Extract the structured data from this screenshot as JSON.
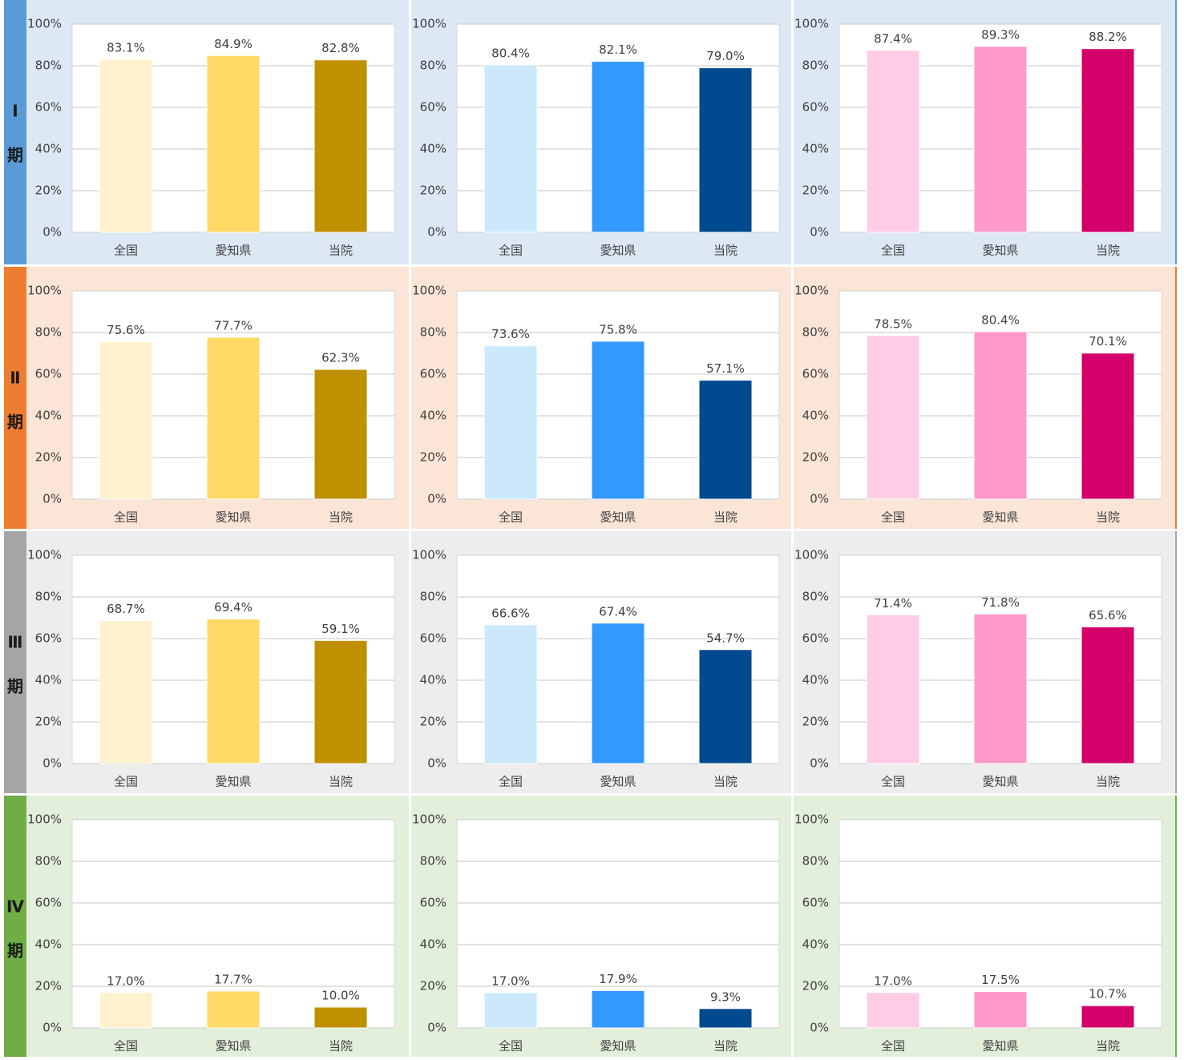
{
  "row_labels": [
    {
      "numeral": "Ⅰ",
      "kanji": "期"
    },
    {
      "numeral": "Ⅱ",
      "kanji": "期"
    },
    {
      "numeral": "Ⅲ",
      "kanji": "期"
    },
    {
      "numeral": "Ⅳ",
      "kanji": "期"
    }
  ],
  "chart_data": [
    {
      "type": "bar",
      "categories": [
        "全国",
        "愛知県",
        "当院"
      ],
      "values": [
        83.1,
        84.9,
        82.8
      ],
      "value_labels": [
        "83.1%",
        "84.9%",
        "82.8%"
      ],
      "colors": [
        "#fff2cc",
        "#ffd966",
        "#bf9000"
      ],
      "ylim": [
        0,
        100
      ],
      "yticks": [
        {
          "value": 0,
          "label": "0%"
        },
        {
          "value": 20,
          "label": "20%"
        },
        {
          "value": 40,
          "label": "40%"
        },
        {
          "value": 60,
          "label": "60%"
        },
        {
          "value": 80,
          "label": "80%"
        },
        {
          "value": 100,
          "label": "100%"
        }
      ],
      "grid": true
    },
    {
      "type": "bar",
      "categories": [
        "全国",
        "愛知県",
        "当院"
      ],
      "values": [
        80.4,
        82.1,
        79.0
      ],
      "value_labels": [
        "80.4%",
        "82.1%",
        "79.0%"
      ],
      "colors": [
        "#cce9fb",
        "#3399ff",
        "#004a8f"
      ],
      "ylim": [
        0,
        100
      ],
      "yticks": [
        {
          "value": 0,
          "label": "0%"
        },
        {
          "value": 20,
          "label": "20%"
        },
        {
          "value": 40,
          "label": "40%"
        },
        {
          "value": 60,
          "label": "60%"
        },
        {
          "value": 80,
          "label": "80%"
        },
        {
          "value": 100,
          "label": "100%"
        }
      ],
      "grid": true
    },
    {
      "type": "bar",
      "categories": [
        "全国",
        "愛知県",
        "当院"
      ],
      "values": [
        87.4,
        89.3,
        88.2
      ],
      "value_labels": [
        "87.4%",
        "89.3%",
        "88.2%"
      ],
      "colors": [
        "#ffcce6",
        "#ff99cc",
        "#d20068"
      ],
      "ylim": [
        0,
        100
      ],
      "yticks": [
        {
          "value": 0,
          "label": "0%"
        },
        {
          "value": 20,
          "label": "20%"
        },
        {
          "value": 40,
          "label": "40%"
        },
        {
          "value": 60,
          "label": "60%"
        },
        {
          "value": 80,
          "label": "80%"
        },
        {
          "value": 100,
          "label": "100%"
        }
      ],
      "grid": true
    },
    {
      "type": "bar",
      "categories": [
        "全国",
        "愛知県",
        "当院"
      ],
      "values": [
        75.6,
        77.7,
        62.3
      ],
      "value_labels": [
        "75.6%",
        "77.7%",
        "62.3%"
      ],
      "colors": [
        "#fff2cc",
        "#ffd966",
        "#bf9000"
      ],
      "ylim": [
        0,
        100
      ],
      "yticks": [
        {
          "value": 0,
          "label": "0%"
        },
        {
          "value": 20,
          "label": "20%"
        },
        {
          "value": 40,
          "label": "40%"
        },
        {
          "value": 60,
          "label": "60%"
        },
        {
          "value": 80,
          "label": "80%"
        },
        {
          "value": 100,
          "label": "100%"
        }
      ],
      "grid": true
    },
    {
      "type": "bar",
      "categories": [
        "全国",
        "愛知県",
        "当院"
      ],
      "values": [
        73.6,
        75.8,
        57.1
      ],
      "value_labels": [
        "73.6%",
        "75.8%",
        "57.1%"
      ],
      "colors": [
        "#cce9fb",
        "#3399ff",
        "#004a8f"
      ],
      "ylim": [
        0,
        100
      ],
      "yticks": [
        {
          "value": 0,
          "label": "0%"
        },
        {
          "value": 20,
          "label": "20%"
        },
        {
          "value": 40,
          "label": "40%"
        },
        {
          "value": 60,
          "label": "60%"
        },
        {
          "value": 80,
          "label": "80%"
        },
        {
          "value": 100,
          "label": "100%"
        }
      ],
      "grid": true
    },
    {
      "type": "bar",
      "categories": [
        "全国",
        "愛知県",
        "当院"
      ],
      "values": [
        78.5,
        80.4,
        70.1
      ],
      "value_labels": [
        "78.5%",
        "80.4%",
        "70.1%"
      ],
      "colors": [
        "#ffcce6",
        "#ff99cc",
        "#d20068"
      ],
      "ylim": [
        0,
        100
      ],
      "yticks": [
        {
          "value": 0,
          "label": "0%"
        },
        {
          "value": 20,
          "label": "20%"
        },
        {
          "value": 40,
          "label": "40%"
        },
        {
          "value": 60,
          "label": "60%"
        },
        {
          "value": 80,
          "label": "80%"
        },
        {
          "value": 100,
          "label": "100%"
        }
      ],
      "grid": true
    },
    {
      "type": "bar",
      "categories": [
        "全国",
        "愛知県",
        "当院"
      ],
      "values": [
        68.7,
        69.4,
        59.1
      ],
      "value_labels": [
        "68.7%",
        "69.4%",
        "59.1%"
      ],
      "colors": [
        "#fff2cc",
        "#ffd966",
        "#bf9000"
      ],
      "ylim": [
        0,
        100
      ],
      "yticks": [
        {
          "value": 0,
          "label": "0%"
        },
        {
          "value": 20,
          "label": "20%"
        },
        {
          "value": 40,
          "label": "40%"
        },
        {
          "value": 60,
          "label": "60%"
        },
        {
          "value": 80,
          "label": "80%"
        },
        {
          "value": 100,
          "label": "100%"
        }
      ],
      "grid": true
    },
    {
      "type": "bar",
      "categories": [
        "全国",
        "愛知県",
        "当院"
      ],
      "values": [
        66.6,
        67.4,
        54.7
      ],
      "value_labels": [
        "66.6%",
        "67.4%",
        "54.7%"
      ],
      "colors": [
        "#cce9fb",
        "#3399ff",
        "#004a8f"
      ],
      "ylim": [
        0,
        100
      ],
      "yticks": [
        {
          "value": 0,
          "label": "0%"
        },
        {
          "value": 20,
          "label": "20%"
        },
        {
          "value": 40,
          "label": "40%"
        },
        {
          "value": 60,
          "label": "60%"
        },
        {
          "value": 80,
          "label": "80%"
        },
        {
          "value": 100,
          "label": "100%"
        }
      ],
      "grid": true
    },
    {
      "type": "bar",
      "categories": [
        "全国",
        "愛知県",
        "当院"
      ],
      "values": [
        71.4,
        71.8,
        65.6
      ],
      "value_labels": [
        "71.4%",
        "71.8%",
        "65.6%"
      ],
      "colors": [
        "#ffcce6",
        "#ff99cc",
        "#d20068"
      ],
      "ylim": [
        0,
        100
      ],
      "yticks": [
        {
          "value": 0,
          "label": "0%"
        },
        {
          "value": 20,
          "label": "20%"
        },
        {
          "value": 40,
          "label": "40%"
        },
        {
          "value": 60,
          "label": "60%"
        },
        {
          "value": 80,
          "label": "80%"
        },
        {
          "value": 100,
          "label": "100%"
        }
      ],
      "grid": true
    },
    {
      "type": "bar",
      "categories": [
        "全国",
        "愛知県",
        "当院"
      ],
      "values": [
        17.0,
        17.7,
        10.0
      ],
      "value_labels": [
        "17.0%",
        "17.7%",
        "10.0%"
      ],
      "colors": [
        "#fff2cc",
        "#ffd966",
        "#bf9000"
      ],
      "ylim": [
        0,
        100
      ],
      "yticks": [
        {
          "value": 0,
          "label": "0%"
        },
        {
          "value": 20,
          "label": "20%"
        },
        {
          "value": 40,
          "label": "40%"
        },
        {
          "value": 60,
          "label": "60%"
        },
        {
          "value": 80,
          "label": "80%"
        },
        {
          "value": 100,
          "label": "100%"
        }
      ],
      "grid": true
    },
    {
      "type": "bar",
      "categories": [
        "全国",
        "愛知県",
        "当院"
      ],
      "values": [
        17.0,
        17.9,
        9.3
      ],
      "value_labels": [
        "17.0%",
        "17.9%",
        "9.3%"
      ],
      "colors": [
        "#cce9fb",
        "#3399ff",
        "#004a8f"
      ],
      "ylim": [
        0,
        100
      ],
      "yticks": [
        {
          "value": 0,
          "label": "0%"
        },
        {
          "value": 20,
          "label": "20%"
        },
        {
          "value": 40,
          "label": "40%"
        },
        {
          "value": 60,
          "label": "60%"
        },
        {
          "value": 80,
          "label": "80%"
        },
        {
          "value": 100,
          "label": "100%"
        }
      ],
      "grid": true
    },
    {
      "type": "bar",
      "categories": [
        "全国",
        "愛知県",
        "当院"
      ],
      "values": [
        17.0,
        17.5,
        10.7
      ],
      "value_labels": [
        "17.0%",
        "17.5%",
        "10.7%"
      ],
      "colors": [
        "#ffcce6",
        "#ff99cc",
        "#d20068"
      ],
      "ylim": [
        0,
        100
      ],
      "yticks": [
        {
          "value": 0,
          "label": "0%"
        },
        {
          "value": 20,
          "label": "20%"
        },
        {
          "value": 40,
          "label": "40%"
        },
        {
          "value": 60,
          "label": "60%"
        },
        {
          "value": 80,
          "label": "80%"
        },
        {
          "value": 100,
          "label": "100%"
        }
      ],
      "grid": true
    }
  ]
}
